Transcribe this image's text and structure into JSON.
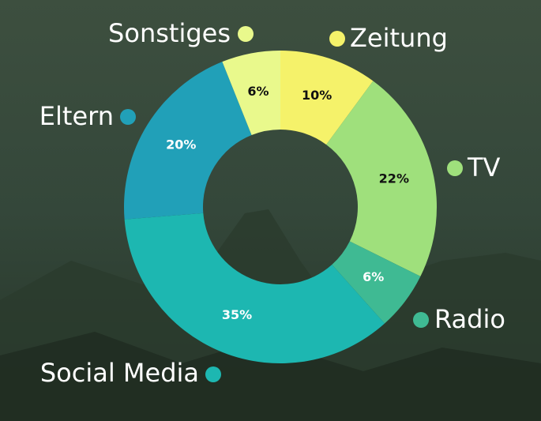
{
  "chart_data": {
    "type": "donut",
    "categories": [
      "Zeitung",
      "TV",
      "Radio",
      "Social Media",
      "Eltern",
      "Sonstiges"
    ],
    "values": [
      10,
      22,
      6,
      35,
      20,
      6
    ],
    "value_labels": [
      "10%",
      "22%",
      "6%",
      "35%",
      "20%",
      "6%"
    ],
    "colors": [
      "#f5f26a",
      "#9fe07c",
      "#3fba93",
      "#1db7b1",
      "#21a0b8",
      "#e9f98c"
    ]
  }
}
